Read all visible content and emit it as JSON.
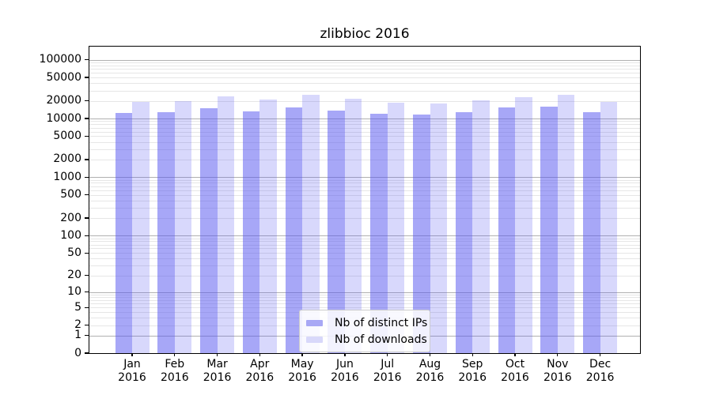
{
  "title": "zlibbioc 2016",
  "chart_data": {
    "type": "bar",
    "scale": "log1p",
    "categories": [
      {
        "month": "Jan",
        "year": "2016"
      },
      {
        "month": "Feb",
        "year": "2016"
      },
      {
        "month": "Mar",
        "year": "2016"
      },
      {
        "month": "Apr",
        "year": "2016"
      },
      {
        "month": "May",
        "year": "2016"
      },
      {
        "month": "Jun",
        "year": "2016"
      },
      {
        "month": "Jul",
        "year": "2016"
      },
      {
        "month": "Aug",
        "year": "2016"
      },
      {
        "month": "Sep",
        "year": "2016"
      },
      {
        "month": "Oct",
        "year": "2016"
      },
      {
        "month": "Nov",
        "year": "2016"
      },
      {
        "month": "Dec",
        "year": "2016"
      }
    ],
    "series": [
      {
        "name": "Nb of distinct IPs",
        "color": "#a8a8f5",
        "fill": "rgba(86,86,240,0.52)",
        "values": [
          12300,
          13000,
          14800,
          13200,
          15400,
          13500,
          11900,
          11600,
          12700,
          15600,
          16000,
          12800
        ]
      },
      {
        "name": "Nb of downloads",
        "color": "#d8d8fa",
        "fill": "rgba(86,86,240,0.23)",
        "values": [
          19200,
          19900,
          23800,
          20800,
          25200,
          21800,
          18700,
          18000,
          20400,
          23400,
          25600,
          19000
        ]
      }
    ],
    "y_ticks": [
      100000,
      50000,
      20000,
      10000,
      5000,
      2000,
      1000,
      500,
      200,
      100,
      50,
      20,
      10,
      5,
      2,
      1,
      0
    ],
    "ylim": [
      0,
      168000
    ],
    "grid": "horizontal only: major lines at powers of 10, minor lines at 2-9 per decade",
    "legend_position": "inside bottom-center"
  },
  "colors": {
    "bar_distinct_ips": "#a8a8f5",
    "bar_downloads": "#d8d8fa",
    "grid_major": "#b0b0b0",
    "grid_minor": "#e6e6e6",
    "axis": "#000000",
    "text": "#000000",
    "legend_border": "#cccccc",
    "legend_background": "rgba(255,255,255,0.85)",
    "background": "#ffffff"
  }
}
